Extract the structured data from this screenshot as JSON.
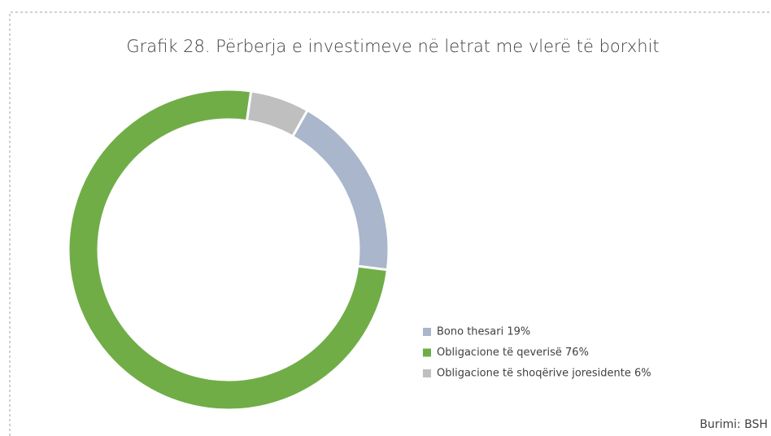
{
  "chart_data": {
    "type": "donut",
    "title": "Grafik 28. Përberja e investimeve në letrat me vlerë të borxhit",
    "categories": [
      "Bono thesari 19%",
      "Obligacione të qeverisë 76%",
      "Obligacione të shoqërive joresidente 6%"
    ],
    "values": [
      19,
      76,
      6
    ],
    "colors": [
      "#a9b6cb",
      "#70ad47",
      "#bfbfbf"
    ],
    "legend": "right",
    "source": "Burimi: BSH"
  }
}
